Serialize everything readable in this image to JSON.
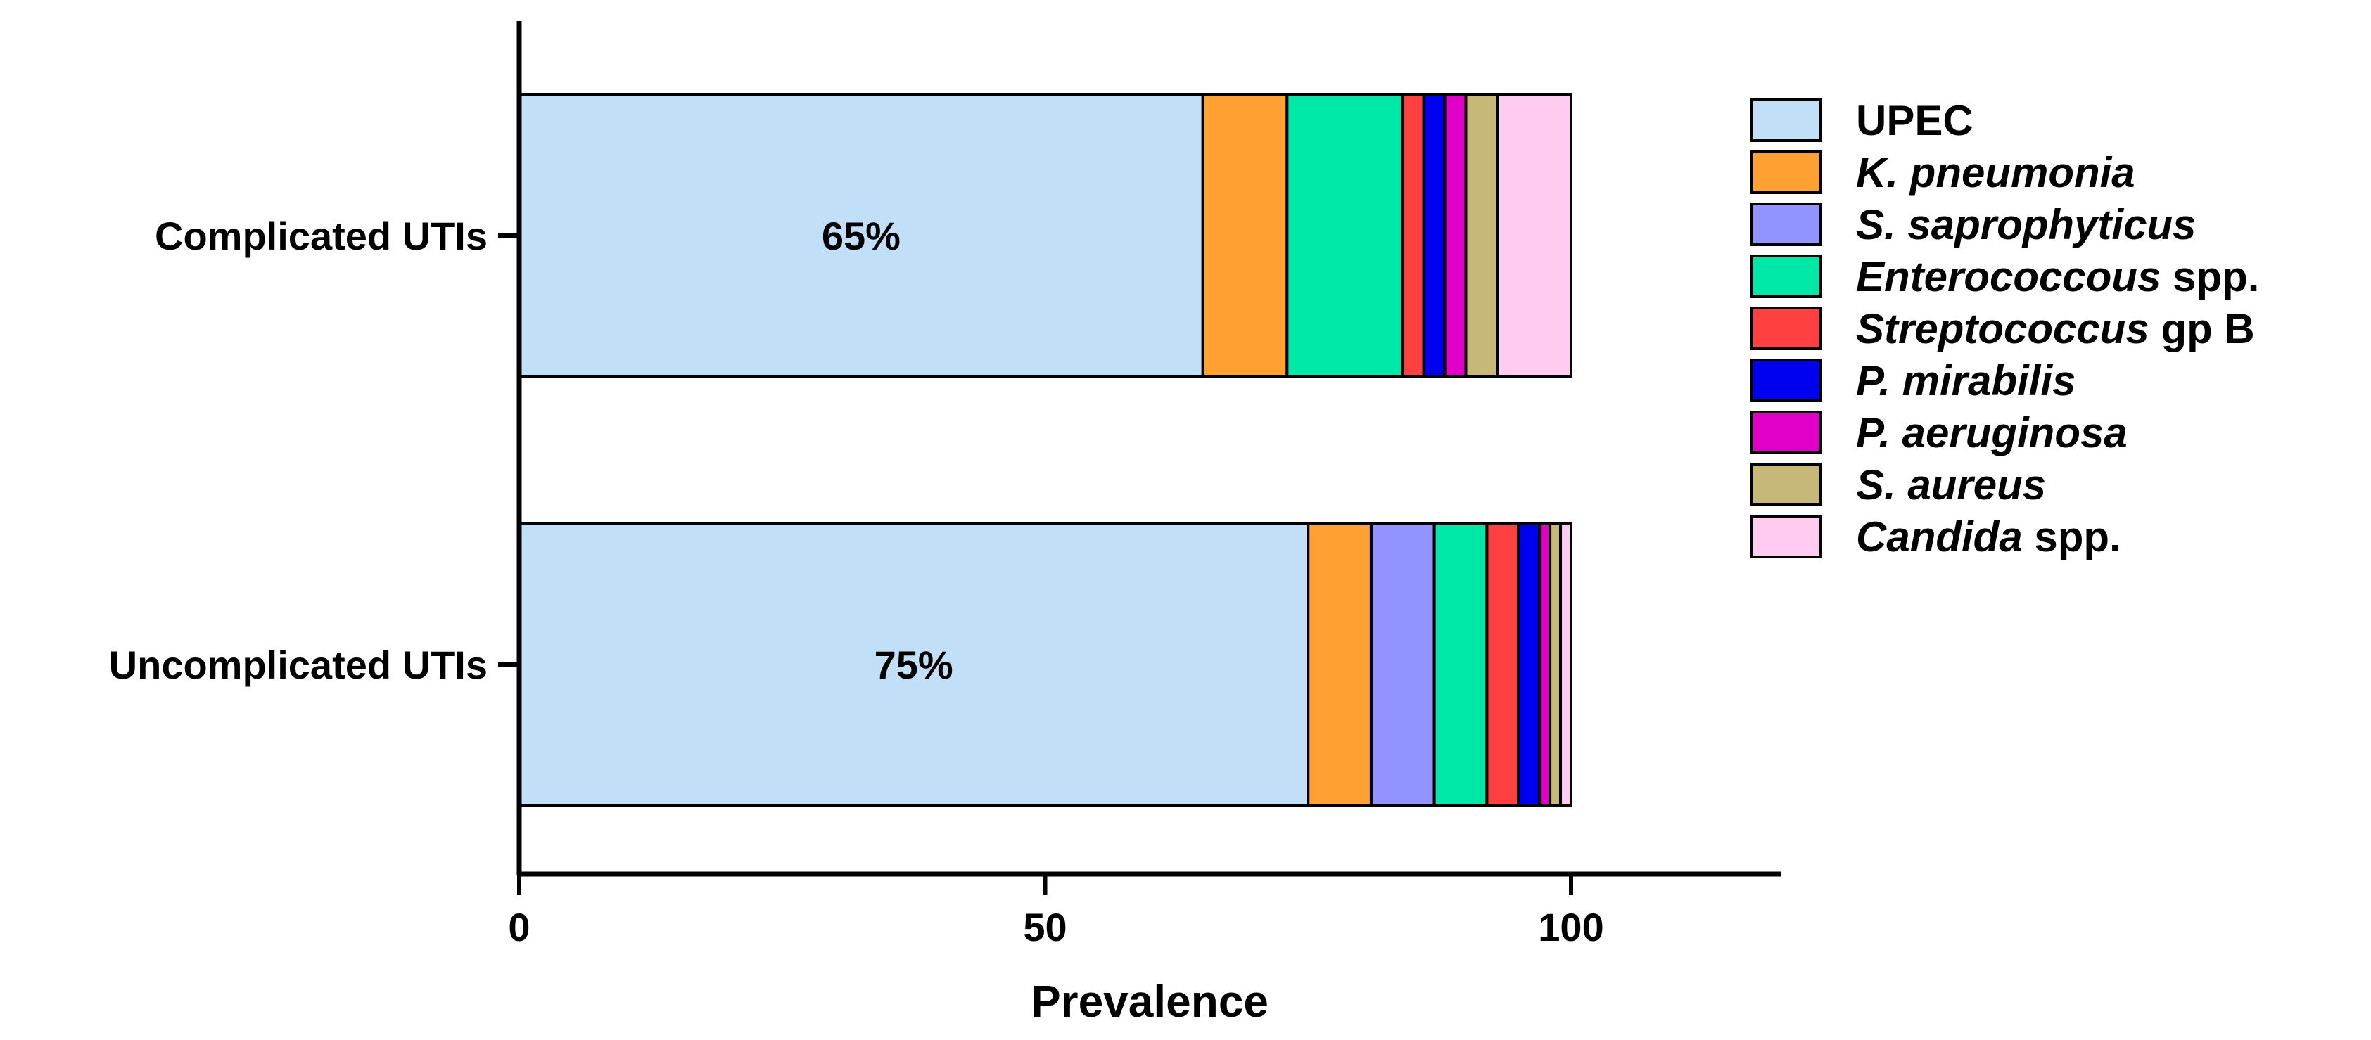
{
  "chart_data": {
    "type": "bar",
    "orientation": "horizontal",
    "stacked": true,
    "title": "",
    "xlabel": "Prevalence",
    "ylabel": "",
    "xlim": [
      0,
      120
    ],
    "xticks": [
      0,
      50,
      100
    ],
    "grid": false,
    "legend_position": "right",
    "categories": [
      "Complicated UTIs",
      "Uncomplicated UTIs"
    ],
    "series": [
      {
        "name": "UPEC",
        "name_parts": [
          {
            "text": "UPEC",
            "italic": false
          }
        ],
        "color": "#C2DFF8",
        "values": [
          65,
          75
        ]
      },
      {
        "name": "K. pneumonia",
        "name_parts": [
          {
            "text": "K. pneumonia",
            "italic": true
          }
        ],
        "color": "#FFA033",
        "values": [
          8,
          6
        ]
      },
      {
        "name": "S. saprophyticus",
        "name_parts": [
          {
            "text": " S. saprophyticus",
            "italic": true
          }
        ],
        "color": "#9393FF",
        "values": [
          0,
          6
        ]
      },
      {
        "name": "Enterococcous spp.",
        "name_parts": [
          {
            "text": "Enterococcous",
            "italic": true
          },
          {
            "text": " spp.",
            "italic": false
          }
        ],
        "color": "#00E8A8",
        "values": [
          11,
          5
        ]
      },
      {
        "name": "Streptococcus gp B",
        "name_parts": [
          {
            "text": "Streptococcus",
            "italic": true
          },
          {
            "text": " gp B",
            "italic": false
          }
        ],
        "color": "#FF4040",
        "values": [
          2,
          3
        ]
      },
      {
        "name": "P. mirabilis",
        "name_parts": [
          {
            "text": "P. mirabilis",
            "italic": true
          }
        ],
        "color": "#0000F0",
        "values": [
          2,
          2
        ]
      },
      {
        "name": "P. aeruginosa",
        "name_parts": [
          {
            "text": "P. aeruginosa",
            "italic": true
          }
        ],
        "color": "#E000C8",
        "values": [
          2,
          1
        ]
      },
      {
        "name": "S. aureus",
        "name_parts": [
          {
            "text": " S. aureus",
            "italic": true
          }
        ],
        "color": "#C8B878",
        "values": [
          3,
          1
        ]
      },
      {
        "name": "Candida spp.",
        "name_parts": [
          {
            "text": " Candida",
            "italic": true
          },
          {
            "text": " spp.",
            "italic": false
          }
        ],
        "color": "#FFCCF0",
        "values": [
          7,
          1
        ]
      }
    ],
    "data_labels": [
      {
        "category": "Complicated UTIs",
        "series": "UPEC",
        "text": "65%"
      },
      {
        "category": "Uncomplicated UTIs",
        "series": "UPEC",
        "text": "75%"
      }
    ]
  }
}
